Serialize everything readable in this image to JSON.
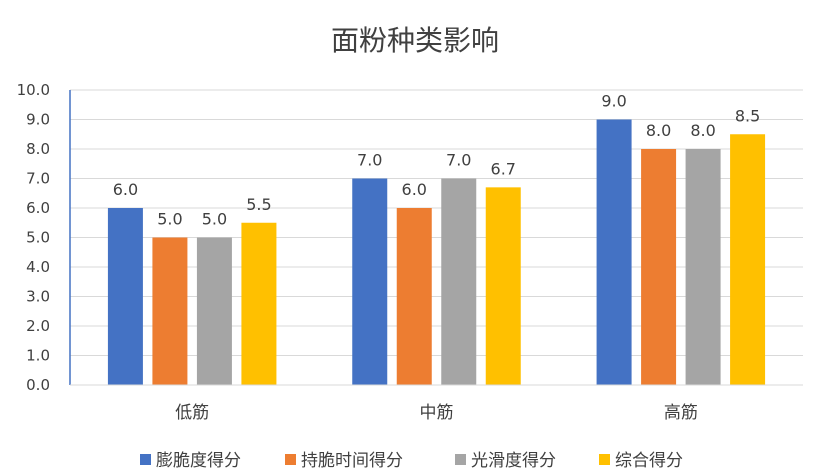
{
  "chart_data": {
    "type": "bar",
    "title": "面粉种类影响",
    "xlabel": "",
    "ylabel": "",
    "ylim": [
      0,
      10
    ],
    "ytick_step": 1,
    "ytick_labels": [
      "0.0",
      "1.0",
      "2.0",
      "3.0",
      "4.0",
      "5.0",
      "6.0",
      "7.0",
      "8.0",
      "9.0",
      "10.0"
    ],
    "grid": true,
    "legend_position": "bottom",
    "categories": [
      "低筋",
      "中筋",
      "高筋"
    ],
    "series": [
      {
        "name": "膨脆度得分",
        "color": "#4472C4",
        "values": [
          6.0,
          7.0,
          9.0
        ],
        "labels": [
          "6.0",
          "7.0",
          "9.0"
        ]
      },
      {
        "name": "持脆时间得分",
        "color": "#ED7D31",
        "values": [
          5.0,
          6.0,
          8.0
        ],
        "labels": [
          "5.0",
          "6.0",
          "8.0"
        ]
      },
      {
        "name": "光滑度得分",
        "color": "#A5A5A5",
        "values": [
          5.0,
          7.0,
          8.0
        ],
        "labels": [
          "5.0",
          "7.0",
          "8.0"
        ]
      },
      {
        "name": "综合得分",
        "color": "#FFC000",
        "values": [
          5.5,
          6.7,
          8.5
        ],
        "labels": [
          "5.5",
          "6.7",
          "8.5"
        ]
      }
    ]
  }
}
